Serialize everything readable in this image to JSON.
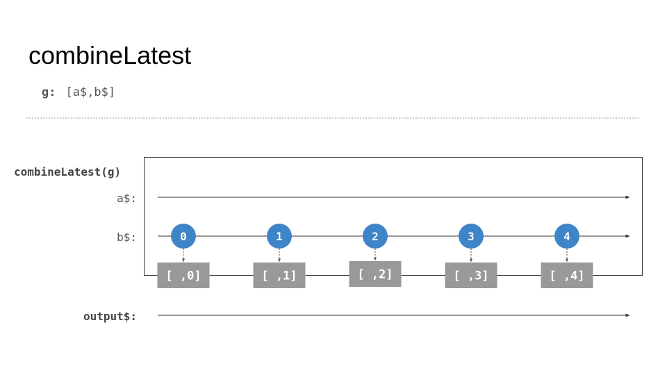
{
  "title": "combineLatest",
  "param": {
    "name": "g:",
    "value": "[a$,b$]"
  },
  "operator_label": "combineLatest(g)",
  "streams": {
    "a": {
      "label": "a$:"
    },
    "b": {
      "label": "b$:"
    },
    "output": {
      "label": "output$:"
    }
  },
  "colors": {
    "marble": "#3d85c6",
    "result_box": "#999999",
    "line": "#333333",
    "label": "#444444"
  },
  "marbles": [
    {
      "value": "0",
      "result": "[ ,0]"
    },
    {
      "value": "1",
      "result": "[ ,1]"
    },
    {
      "value": "2",
      "result": "[ ,2]"
    },
    {
      "value": "3",
      "result": "[ ,3]"
    },
    {
      "value": "4",
      "result": "[ ,4]"
    }
  ]
}
